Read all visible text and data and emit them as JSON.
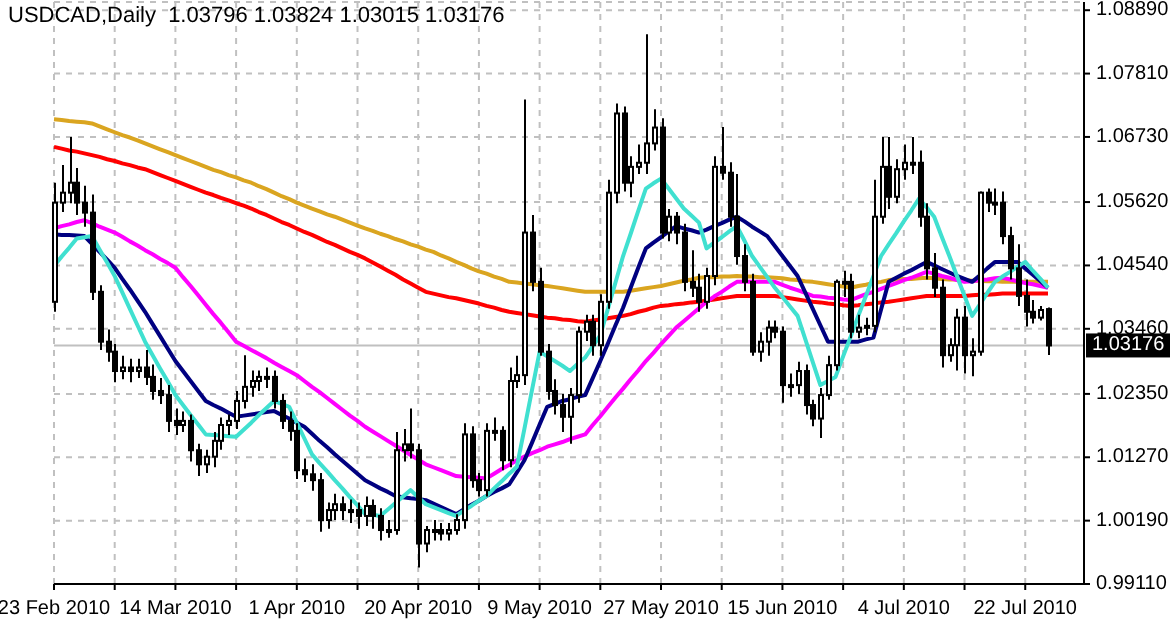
{
  "chart_data": {
    "type": "candlestick",
    "title": "USDCAD,Daily  1.03796 1.03824 1.03015 1.03176",
    "color": "#000000",
    "grid": true,
    "categories": [
      "23 Feb 2010",
      null,
      null,
      null,
      null,
      null,
      null,
      null,
      null,
      null,
      null,
      null,
      null,
      null,
      null,
      null,
      "14 Mar 2010",
      null,
      null,
      null,
      null,
      null,
      null,
      null,
      null,
      null,
      null,
      null,
      null,
      null,
      null,
      null,
      "1 Apr 2010",
      null,
      null,
      null,
      null,
      null,
      null,
      null,
      null,
      null,
      null,
      null,
      null,
      null,
      null,
      null,
      "20 Apr 2010",
      null,
      null,
      null,
      null,
      null,
      null,
      null,
      null,
      null,
      null,
      null,
      null,
      null,
      null,
      null,
      "9 May 2010",
      null,
      null,
      null,
      null,
      null,
      null,
      null,
      null,
      null,
      null,
      null,
      null,
      null,
      null,
      null,
      "27 May 2010",
      null,
      null,
      null,
      null,
      null,
      null,
      null,
      null,
      null,
      null,
      null,
      null,
      null,
      null,
      null,
      "15 Jun 2010",
      null,
      null,
      null,
      null,
      null,
      null,
      null,
      null,
      null,
      null,
      null,
      null,
      null,
      null,
      null,
      "4 Jul 2010",
      null,
      null,
      null,
      null,
      null,
      null,
      null,
      null,
      null,
      null,
      null,
      null,
      null,
      null,
      null,
      "22 Jul 2010",
      null,
      null,
      null
    ],
    "ohlc": [
      [
        1.0392,
        1.0595,
        1.0375,
        1.0561
      ],
      [
        1.0561,
        1.0625,
        1.0545,
        1.0578
      ],
      [
        1.0578,
        1.0673,
        1.056,
        1.0595
      ],
      [
        1.0595,
        1.062,
        1.054,
        1.0561
      ],
      [
        1.0561,
        1.059,
        1.052,
        1.0544
      ],
      [
        1.0544,
        1.0575,
        1.0395,
        1.0409
      ],
      [
        1.0409,
        1.042,
        1.031,
        1.0324
      ],
      [
        1.0324,
        1.0345,
        1.029,
        1.0307
      ],
      [
        1.0307,
        1.032,
        1.0255,
        1.0274
      ],
      [
        1.0274,
        1.03,
        1.026,
        1.028
      ],
      [
        1.028,
        1.0295,
        1.0255,
        1.0274
      ],
      [
        1.0274,
        1.0295,
        1.0262,
        1.028
      ],
      [
        1.028,
        1.031,
        1.025,
        1.0264
      ],
      [
        1.0264,
        1.0285,
        1.0225,
        1.024
      ],
      [
        1.024,
        1.0262,
        1.0218,
        1.0233
      ],
      [
        1.0233,
        1.025,
        1.017,
        1.0189
      ],
      [
        1.0189,
        1.021,
        1.0165,
        1.0182
      ],
      [
        1.0182,
        1.0205,
        1.017,
        1.0189
      ],
      [
        1.0189,
        1.02,
        1.012,
        1.0139
      ],
      [
        1.0139,
        1.015,
        1.0095,
        1.0115
      ],
      [
        1.0115,
        1.014,
        1.01,
        1.0128
      ],
      [
        1.0128,
        1.017,
        1.011,
        1.0155
      ],
      [
        1.0155,
        1.0195,
        1.014,
        1.0182
      ],
      [
        1.0182,
        1.02,
        1.0165,
        1.0189
      ],
      [
        1.0189,
        1.024,
        1.0175,
        1.0223
      ],
      [
        1.0223,
        1.0301,
        1.021,
        1.0247
      ],
      [
        1.0247,
        1.0275,
        1.023,
        1.0257
      ],
      [
        1.0257,
        1.0275,
        1.024,
        1.0264
      ],
      [
        1.0264,
        1.028,
        1.0245,
        1.0264
      ],
      [
        1.0264,
        1.0275,
        1.021,
        1.0223
      ],
      [
        1.0223,
        1.0235,
        1.0175,
        1.0189
      ],
      [
        1.0189,
        1.0205,
        1.0155,
        1.0172
      ],
      [
        1.0172,
        1.0185,
        1.009,
        1.0105
      ],
      [
        1.0105,
        1.0125,
        1.0085,
        1.0098
      ],
      [
        1.0098,
        1.0115,
        1.007,
        1.0088
      ],
      [
        1.0088,
        1.01,
        1.0,
        1.002
      ],
      [
        1.002,
        1.005,
        1.0005,
        1.0037
      ],
      [
        1.0037,
        1.0065,
        1.002,
        1.0047
      ],
      [
        1.0047,
        1.006,
        1.002,
        1.0037
      ],
      [
        1.0037,
        1.0055,
        1.0015,
        1.0037
      ],
      [
        1.0037,
        1.005,
        1.0005,
        1.0027
      ],
      [
        1.0027,
        1.006,
        1.001,
        1.0044
      ],
      [
        1.0044,
        1.0055,
        1.0005,
        1.0027
      ],
      [
        1.0027,
        1.004,
        0.9985,
        1.0003
      ],
      [
        1.0003,
        1.002,
        0.999,
        1.0003
      ],
      [
        1.0003,
        1.017,
        0.9995,
        1.0139
      ],
      [
        1.0139,
        1.0175,
        1.012,
        1.0149
      ],
      [
        1.0149,
        1.021,
        1.0125,
        1.0139
      ],
      [
        1.0139,
        1.015,
        0.9939,
        0.998
      ],
      [
        0.998,
        1.001,
        0.9965,
        1.0003
      ],
      [
        1.0003,
        1.002,
        0.9985,
        1.0003
      ],
      [
        1.0003,
        1.0015,
        0.9985,
        0.9997
      ],
      [
        0.9997,
        1.0015,
        0.9985,
        1.0003
      ],
      [
        1.0003,
        1.003,
        0.9995,
        1.002
      ],
      [
        1.002,
        1.0185,
        1.0005,
        1.0166
      ],
      [
        1.0166,
        1.018,
        1.0075,
        1.0088
      ],
      [
        1.0088,
        1.01,
        1.006,
        1.0071
      ],
      [
        1.0071,
        1.0185,
        1.006,
        1.0172
      ],
      [
        1.0172,
        1.0195,
        1.0155,
        1.0172
      ],
      [
        1.0172,
        1.018,
        1.0105,
        1.0122
      ],
      [
        1.0122,
        1.028,
        1.011,
        1.0257
      ],
      [
        1.0257,
        1.03,
        1.0245,
        1.0267
      ],
      [
        1.0267,
        1.0737,
        1.025,
        1.051
      ],
      [
        1.051,
        1.054,
        1.041,
        1.0426
      ],
      [
        1.0426,
        1.045,
        1.03,
        1.0307
      ],
      [
        1.0307,
        1.032,
        1.0225,
        1.024
      ],
      [
        1.024,
        1.026,
        1.02,
        1.0216
      ],
      [
        1.0216,
        1.0235,
        1.017,
        1.0196
      ],
      [
        1.0196,
        1.0245,
        1.015,
        1.0233
      ],
      [
        1.0233,
        1.035,
        1.022,
        1.0341
      ],
      [
        1.0341,
        1.037,
        1.0325,
        1.0358
      ],
      [
        1.0358,
        1.037,
        1.03,
        1.0318
      ],
      [
        1.0318,
        1.0405,
        1.03,
        1.0392
      ],
      [
        1.0392,
        1.06,
        1.038,
        1.0578
      ],
      [
        1.0578,
        1.073,
        1.056,
        1.0713
      ],
      [
        1.0713,
        1.0725,
        1.058,
        1.0595
      ],
      [
        1.0595,
        1.064,
        1.057,
        1.0622
      ],
      [
        1.0622,
        1.066,
        1.061,
        1.0629
      ],
      [
        1.0629,
        1.0848,
        1.061,
        1.0662
      ],
      [
        1.0662,
        1.072,
        1.065,
        1.0689
      ],
      [
        1.0689,
        1.0705,
        1.05,
        1.051
      ],
      [
        1.051,
        1.055,
        1.0495,
        1.0537
      ],
      [
        1.0537,
        1.0545,
        1.049,
        1.051
      ],
      [
        1.051,
        1.0525,
        1.041,
        1.0426
      ],
      [
        1.0426,
        1.048,
        1.04,
        1.0416
      ],
      [
        1.0416,
        1.044,
        1.0375,
        1.0392
      ],
      [
        1.0392,
        1.045,
        1.038,
        1.0436
      ],
      [
        1.0436,
        1.064,
        1.042,
        1.0622
      ],
      [
        1.0622,
        1.069,
        1.06,
        1.0612
      ],
      [
        1.0612,
        1.063,
        1.052,
        1.0537
      ],
      [
        1.0537,
        1.061,
        1.0455,
        1.047
      ],
      [
        1.047,
        1.049,
        1.041,
        1.0426
      ],
      [
        1.0426,
        1.044,
        1.03,
        1.0307
      ],
      [
        1.0307,
        1.034,
        1.029,
        1.0324
      ],
      [
        1.0324,
        1.036,
        1.03,
        1.0348
      ],
      [
        1.0348,
        1.036,
        1.033,
        1.0341
      ],
      [
        1.0341,
        1.035,
        1.022,
        1.025
      ],
      [
        1.025,
        1.027,
        1.023,
        1.025
      ],
      [
        1.025,
        1.029,
        1.0235,
        1.0274
      ],
      [
        1.0274,
        1.0285,
        1.02,
        1.0216
      ],
      [
        1.0216,
        1.0225,
        1.018,
        1.0193
      ],
      [
        1.0193,
        1.0245,
        1.016,
        1.0233
      ],
      [
        1.0233,
        1.03,
        1.0225,
        1.0284
      ],
      [
        1.0284,
        1.043,
        1.0275,
        1.0426
      ],
      [
        1.0426,
        1.0445,
        1.04,
        1.0426
      ],
      [
        1.0426,
        1.044,
        1.033,
        1.0341
      ],
      [
        1.0341,
        1.037,
        1.033,
        1.0348
      ],
      [
        1.0348,
        1.0365,
        1.0335,
        1.0351
      ],
      [
        1.0351,
        1.06,
        1.034,
        1.0537
      ],
      [
        1.0537,
        1.0673,
        1.0525,
        1.0622
      ],
      [
        1.0622,
        1.0673,
        1.055,
        1.0571
      ],
      [
        1.0571,
        1.0635,
        1.056,
        1.0618
      ],
      [
        1.0618,
        1.066,
        1.06,
        1.0629
      ],
      [
        1.0629,
        1.0673,
        1.061,
        1.0629
      ],
      [
        1.0629,
        1.065,
        1.052,
        1.0537
      ],
      [
        1.0537,
        1.056,
        1.043,
        1.0449
      ],
      [
        1.0449,
        1.0475,
        1.04,
        1.0416
      ],
      [
        1.0416,
        1.043,
        1.028,
        1.0301
      ],
      [
        1.0301,
        1.033,
        1.029,
        1.0318
      ],
      [
        1.0318,
        1.038,
        1.0275,
        1.0365
      ],
      [
        1.0365,
        1.0385,
        1.027,
        1.0301
      ],
      [
        1.0301,
        1.033,
        1.0265,
        1.0307
      ],
      [
        1.0307,
        1.058,
        1.03,
        1.0578
      ],
      [
        1.0578,
        1.0585,
        1.0545,
        1.0561
      ],
      [
        1.0561,
        1.0585,
        1.054,
        1.0561
      ],
      [
        1.0561,
        1.058,
        1.049,
        1.0504
      ],
      [
        1.0504,
        1.052,
        1.043,
        1.0449
      ],
      [
        1.0449,
        1.049,
        1.0385,
        1.0402
      ],
      [
        1.0402,
        1.043,
        1.035,
        1.0375
      ],
      [
        1.0375,
        1.0395,
        1.0355,
        1.0365
      ],
      [
        1.0365,
        1.0385,
        1.036,
        1.0378
      ],
      [
        1.03796,
        1.03824,
        1.03015,
        1.03176
      ]
    ],
    "series": [
      {
        "type": "line",
        "color": "#daa520",
        "values": [
          1.0703,
          1.0702,
          1.07,
          1.0699,
          1.0698,
          1.0696,
          1.0691,
          1.0686,
          1.0681,
          1.0676,
          1.0672,
          1.0667,
          1.0662,
          1.0657,
          1.0652,
          1.0647,
          1.0642,
          1.0637,
          1.0632,
          1.0627,
          1.0622,
          1.0617,
          1.0613,
          1.0608,
          1.0604,
          1.0599,
          1.0595,
          1.0589,
          1.0584,
          1.0578,
          1.0572,
          1.0567,
          1.0561,
          1.0556,
          1.0551,
          1.0546,
          1.0541,
          1.0537,
          1.0532,
          1.0527,
          1.0522,
          1.0517,
          1.0513,
          1.0508,
          1.0504,
          1.0499,
          1.0495,
          1.049,
          1.0486,
          1.0481,
          1.0477,
          1.0471,
          1.0466,
          1.046,
          1.0455,
          1.0449,
          1.0444,
          1.044,
          1.0435,
          1.0431,
          1.0426,
          1.0425,
          1.0423,
          1.0422,
          1.042,
          1.0419,
          1.0417,
          1.0415,
          1.0413,
          1.0411,
          1.0409,
          1.0409,
          1.0409,
          1.0409,
          1.0409,
          1.0409,
          1.0411,
          1.0413,
          1.0415,
          1.0417,
          1.0419,
          1.0422,
          1.0425,
          1.0428,
          1.043,
          1.0433,
          1.0434,
          1.0434,
          1.0435,
          1.0435,
          1.0436,
          1.0435,
          1.0435,
          1.0434,
          1.0434,
          1.0433,
          1.0432,
          1.043,
          1.0429,
          1.0427,
          1.0426,
          1.0424,
          1.0422,
          1.042,
          1.0418,
          1.0416,
          1.0419,
          1.0421,
          1.0424,
          1.0426,
          1.0429,
          1.043,
          1.0431,
          1.0431,
          1.0432,
          1.0433,
          1.0432,
          1.0431,
          1.043,
          1.043,
          1.0429,
          1.0428,
          1.0428,
          1.0427,
          1.0427,
          1.0426,
          1.0426,
          1.0426,
          1.0426,
          1.0426,
          1.0426,
          1.0426
        ]
      },
      {
        "type": "line",
        "color": "#ff0000",
        "values": [
          1.0656,
          1.0653,
          1.065,
          1.0648,
          1.0645,
          1.0642,
          1.0639,
          1.0635,
          1.0632,
          1.0628,
          1.0625,
          1.0621,
          1.0618,
          1.0613,
          1.0608,
          1.0603,
          1.0598,
          1.0593,
          1.0588,
          1.0583,
          1.0578,
          1.0574,
          1.0569,
          1.0565,
          1.056,
          1.0556,
          1.0551,
          1.0545,
          1.054,
          1.0534,
          1.0528,
          1.0523,
          1.0517,
          1.0511,
          1.0506,
          1.05,
          1.0494,
          1.0489,
          1.0483,
          1.0477,
          1.0472,
          1.0466,
          1.0459,
          1.0452,
          1.0445,
          1.0438,
          1.043,
          1.0423,
          1.0416,
          1.0409,
          1.0406,
          1.0403,
          1.04,
          1.0398,
          1.0395,
          1.0392,
          1.0389,
          1.0385,
          1.0382,
          1.0378,
          1.0375,
          1.0373,
          1.0371,
          1.0369,
          1.0367,
          1.0365,
          1.0364,
          1.0362,
          1.0361,
          1.0359,
          1.0358,
          1.036,
          1.0362,
          1.0364,
          1.0366,
          1.0368,
          1.0371,
          1.0375,
          1.0378,
          1.0382,
          1.0385,
          1.0386,
          1.0388,
          1.0389,
          1.0391,
          1.0392,
          1.0394,
          1.0396,
          1.0398,
          1.04,
          1.0402,
          1.0402,
          1.0402,
          1.0402,
          1.0402,
          1.0402,
          1.04,
          1.0398,
          1.0396,
          1.0394,
          1.0392,
          1.0391,
          1.0389,
          1.0388,
          1.0386,
          1.0385,
          1.0386,
          1.0388,
          1.0389,
          1.0391,
          1.0392,
          1.0394,
          1.0396,
          1.0398,
          1.04,
          1.0402,
          1.0402,
          1.0402,
          1.0402,
          1.0402,
          1.0402,
          1.0403,
          1.0404,
          1.0404,
          1.0405,
          1.0406,
          1.0406,
          1.0406,
          1.0406,
          1.0406,
          1.0406,
          1.0406
        ]
      },
      {
        "type": "line",
        "color": "#ff00ff",
        "values": [
          1.0517,
          1.0521,
          1.0524,
          1.0528,
          1.0531,
          1.0526,
          1.052,
          1.0515,
          1.051,
          1.0503,
          1.0495,
          1.0488,
          1.048,
          1.0473,
          1.0465,
          1.0458,
          1.045,
          1.0434,
          1.0419,
          1.0403,
          1.0387,
          1.0371,
          1.0356,
          1.034,
          1.0324,
          1.0317,
          1.031,
          1.0303,
          1.0296,
          1.0288,
          1.0281,
          1.0274,
          1.0267,
          1.0257,
          1.0247,
          1.0238,
          1.0228,
          1.0218,
          1.0208,
          1.0198,
          1.0189,
          1.0179,
          1.0171,
          1.0163,
          1.0155,
          1.0147,
          1.0139,
          1.0131,
          1.0123,
          1.0115,
          1.011,
          1.0105,
          1.01,
          1.0095,
          1.0094,
          1.0093,
          1.0092,
          1.0091,
          1.0099,
          1.0107,
          1.0114,
          1.0122,
          1.0128,
          1.0134,
          1.0139,
          1.0145,
          1.0149,
          1.0153,
          1.0158,
          1.0162,
          1.0166,
          1.0182,
          1.0197,
          1.0213,
          1.0229,
          1.0244,
          1.026,
          1.0275,
          1.0291,
          1.0305,
          1.032,
          1.0334,
          1.0348,
          1.0359,
          1.037,
          1.0381,
          1.0392,
          1.0401,
          1.0409,
          1.0418,
          1.0426,
          1.0426,
          1.0426,
          1.0426,
          1.0426,
          1.0426,
          1.0421,
          1.0416,
          1.0412,
          1.0407,
          1.0402,
          1.0401,
          1.0399,
          1.0398,
          1.0396,
          1.0395,
          1.04,
          1.0405,
          1.0409,
          1.0414,
          1.0419,
          1.0424,
          1.0429,
          1.0433,
          1.0438,
          1.0443,
          1.044,
          1.0436,
          1.0433,
          1.0429,
          1.0426,
          1.0427,
          1.0429,
          1.043,
          1.0432,
          1.0433,
          1.043,
          1.0427,
          1.0424,
          1.0422,
          1.0419,
          1.0416
        ]
      },
      {
        "type": "line",
        "color": "#000080",
        "values": [
          1.0507,
          1.0506,
          1.0506,
          1.0505,
          1.0504,
          1.0491,
          1.0477,
          1.0464,
          1.045,
          1.0431,
          1.0413,
          1.0394,
          1.0375,
          1.0354,
          1.0333,
          1.0312,
          1.0291,
          1.0274,
          1.0257,
          1.024,
          1.0223,
          1.0216,
          1.021,
          1.0203,
          1.0196,
          1.0198,
          1.02,
          1.0202,
          1.0204,
          1.0206,
          1.0199,
          1.0193,
          1.0186,
          1.0179,
          1.0167,
          1.0155,
          1.0144,
          1.0132,
          1.0121,
          1.011,
          1.0099,
          1.0088,
          1.0081,
          1.0074,
          1.0068,
          1.0061,
          1.0059,
          1.0057,
          1.0056,
          1.0054,
          1.0048,
          1.0042,
          1.0036,
          1.003,
          1.0038,
          1.0046,
          1.0053,
          1.0061,
          1.0068,
          1.0074,
          1.0081,
          1.0101,
          1.0122,
          1.0152,
          1.0183,
          1.0213,
          1.0218,
          1.0223,
          1.0226,
          1.023,
          1.0233,
          1.0262,
          1.0291,
          1.0321,
          1.0352,
          1.0382,
          1.0416,
          1.045,
          1.0483,
          1.0493,
          1.0502,
          1.0512,
          1.0521,
          1.0517,
          1.0514,
          1.051,
          1.0515,
          1.0521,
          1.0526,
          1.0532,
          1.0537,
          1.0529,
          1.052,
          1.0512,
          1.0504,
          1.0487,
          1.047,
          1.0453,
          1.0436,
          1.0408,
          1.038,
          1.0352,
          1.0324,
          1.0324,
          1.0324,
          1.0324,
          1.0324,
          1.0328,
          1.0331,
          1.0379,
          1.0426,
          1.0433,
          1.044,
          1.0446,
          1.0453,
          1.046,
          1.0454,
          1.0448,
          1.0442,
          1.0436,
          1.0431,
          1.0426,
          1.0437,
          1.0449,
          1.046,
          1.046,
          1.046,
          1.046,
          1.0449,
          1.0438,
          1.0427,
          1.0416
        ]
      },
      {
        "type": "line",
        "color": "#40e0d0",
        "values": [
          1.0453,
          1.0469,
          1.0484,
          1.05,
          1.0502,
          1.0504,
          1.0481,
          1.0459,
          1.0436,
          1.0408,
          1.038,
          1.0352,
          1.0324,
          1.0301,
          1.0278,
          1.0256,
          1.0233,
          1.0216,
          1.0199,
          1.0183,
          1.0166,
          1.0165,
          1.0164,
          1.0163,
          1.0162,
          1.0174,
          1.0186,
          1.0199,
          1.0211,
          1.0223,
          1.0218,
          1.0213,
          1.0186,
          1.0159,
          1.0132,
          1.0117,
          1.0103,
          1.0088,
          1.0074,
          1.0059,
          1.0045,
          1.003,
          1.0029,
          1.0027,
          1.0038,
          1.0049,
          1.006,
          1.0071,
          1.0059,
          1.0047,
          1.0042,
          1.0037,
          1.0032,
          1.0027,
          1.0036,
          1.0044,
          1.0053,
          1.0061,
          1.0074,
          1.0086,
          1.0099,
          1.0111,
          1.0176,
          1.0242,
          1.0307,
          1.0299,
          1.0291,
          1.0283,
          1.0274,
          1.0286,
          1.0297,
          1.0316,
          1.0335,
          1.038,
          1.0425,
          1.047,
          1.0508,
          1.0547,
          1.0585,
          1.0594,
          1.0602,
          1.0585,
          1.0568,
          1.0551,
          1.0539,
          1.0527,
          1.0483,
          1.0493,
          1.0502,
          1.0512,
          1.0521,
          1.0496,
          1.047,
          1.0452,
          1.0434,
          1.0416,
          1.04,
          1.0384,
          1.0368,
          1.0329,
          1.0289,
          1.025,
          1.0257,
          1.0264,
          1.0299,
          1.0333,
          1.0368,
          1.0402,
          1.0436,
          1.047,
          1.049,
          1.0509,
          1.0529,
          1.0548,
          1.0568,
          1.0553,
          1.0537,
          1.0503,
          1.047,
          1.0436,
          1.0402,
          1.0368,
          1.0387,
          1.0407,
          1.0426,
          1.0435,
          1.0443,
          1.0452,
          1.046,
          1.0445,
          1.0431,
          1.0416
        ]
      }
    ],
    "ylim": [
      0.9911,
      1.0903
    ],
    "yticks": [
      {
        "value": 0.9911,
        "label": "0.99110"
      },
      {
        "value": 1.0019,
        "label": "1.00190"
      },
      {
        "value": 1.0127,
        "label": "1.01270"
      },
      {
        "value": 1.0235,
        "label": "1.02350"
      },
      {
        "value": 1.0346,
        "label": "1.03460"
      },
      {
        "value": 1.0454,
        "label": "1.04540"
      },
      {
        "value": 1.0562,
        "label": "1.05620"
      },
      {
        "value": 1.0673,
        "label": "1.06730"
      },
      {
        "value": 1.0781,
        "label": "1.07810"
      },
      {
        "value": 1.0889,
        "label": "1.08890"
      }
    ],
    "ref_lines": [
      {
        "axis": "y",
        "value": 1.03176,
        "label": "1.03176",
        "color": "#c0c0c0"
      }
    ]
  }
}
